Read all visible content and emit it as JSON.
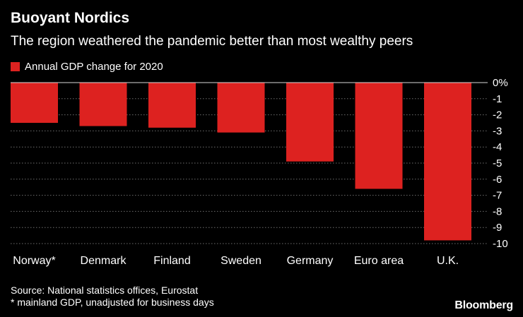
{
  "header": {
    "title": "Buoyant Nordics",
    "subtitle": "The region weathered the pandemic better than most wealthy peers"
  },
  "legend": {
    "label": "Annual GDP change for 2020",
    "color": "#dd2220"
  },
  "footer": {
    "source": "Source: National statistics offices, Eurostat",
    "footnote": "* mainland GDP, unadjusted for business days",
    "brand": "Bloomberg"
  },
  "colors": {
    "bar": "#dd2220",
    "grid": "#6e6e6e",
    "background": "#000000",
    "text": "#ffffff"
  },
  "chart_data": {
    "type": "bar",
    "categories": [
      "Norway*",
      "Denmark",
      "Finland",
      "Sweden",
      "Germany",
      "Euro area",
      "U.K."
    ],
    "series": [
      {
        "name": "Annual GDP change for 2020",
        "values": [
          -2.5,
          -2.7,
          -2.8,
          -3.1,
          -4.9,
          -6.6,
          -9.8
        ]
      }
    ],
    "ylim": [
      -10,
      0
    ],
    "yticks": [
      0,
      -1,
      -2,
      -3,
      -4,
      -5,
      -6,
      -7,
      -8,
      -9,
      -10
    ],
    "ytick_labels": [
      "0%",
      "-1",
      "-2",
      "-3",
      "-4",
      "-5",
      "-6",
      "-7",
      "-8",
      "-9",
      "-10"
    ],
    "grid": true,
    "y_axis_side": "right",
    "legend_position": "top-left"
  }
}
